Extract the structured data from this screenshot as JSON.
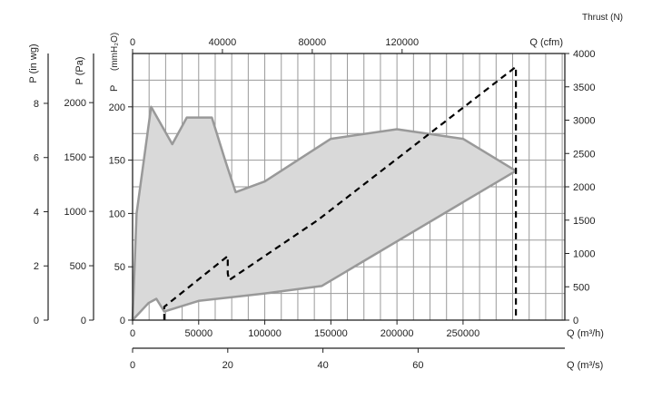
{
  "chart_data": {
    "type": "area",
    "grid": true,
    "colors": {
      "envelope_fill": "#d9d9d9",
      "envelope_stroke": "#999999",
      "thrust_line": "#000000",
      "grid": "#9a9a9a",
      "axis": "#222222"
    },
    "axes": {
      "x_bottom": {
        "label": "Q (m³/h)",
        "range": [
          0,
          327000
        ],
        "ticks": [
          0,
          50000,
          100000,
          150000,
          200000,
          250000
        ],
        "tick_labels": [
          "0",
          "50000",
          "100000",
          "150000",
          "200000",
          "250000"
        ]
      },
      "x_bottom2": {
        "label": "Q (m³/s)",
        "range": [
          0,
          90.83
        ],
        "ticks": [
          0,
          20,
          40,
          60
        ],
        "tick_labels": [
          "0",
          "20",
          "40",
          "60"
        ]
      },
      "x_top": {
        "label": "Q (cfm)",
        "range": [
          0,
          192460
        ],
        "ticks": [
          0,
          40000,
          80000,
          120000
        ],
        "tick_labels": [
          "0",
          "40000",
          "80000",
          "120000"
        ]
      },
      "y_left_mmH2O": {
        "label": "P",
        "unit_label": "(mmH₂O)",
        "range": [
          0,
          250
        ],
        "ticks": [
          0,
          50,
          100,
          150,
          200
        ],
        "tick_labels": [
          "0",
          "50",
          "100",
          "150",
          "200"
        ]
      },
      "y_left_Pa": {
        "label": "P (Pa)",
        "range": [
          0,
          2451.7
        ],
        "ticks": [
          0,
          500,
          1000,
          1500,
          2000
        ],
        "tick_labels": [
          "0",
          "500",
          "1000",
          "1500",
          "2000"
        ]
      },
      "y_left_inwg": {
        "label": "P (in wg)",
        "range": [
          0,
          9.84
        ],
        "ticks": [
          0,
          2,
          4,
          6,
          8
        ],
        "tick_labels": [
          "0",
          "2",
          "4",
          "6",
          "8"
        ]
      },
      "y_right_thrust": {
        "label": "Thrust (N)",
        "range": [
          0,
          4000
        ],
        "ticks": [
          0,
          500,
          1000,
          1500,
          2000,
          2500,
          3000,
          3500,
          4000
        ],
        "tick_labels": [
          "0",
          "500",
          "1000",
          "1500",
          "2000",
          "2500",
          "3000",
          "3500",
          "4000"
        ]
      }
    },
    "series": [
      {
        "kind": "envelope",
        "axis_x": "x_bottom",
        "axis_y": "y_left_mmH2O",
        "upper": {
          "x": [
            0,
            3000,
            14000,
            30000,
            41000,
            60000,
            70000,
            78000,
            100000,
            150000,
            200000,
            250000,
            290000
          ],
          "y": [
            0,
            100,
            200,
            165,
            190,
            190,
            150,
            120,
            130,
            170,
            179,
            170,
            140
          ]
        },
        "lower": {
          "x": [
            0,
            12000,
            18000,
            24000,
            50000,
            100000,
            143000,
            290000
          ],
          "y": [
            0,
            16,
            20,
            8,
            18,
            25,
            32,
            140
          ]
        }
      },
      {
        "kind": "line",
        "style": "dashed",
        "axis_x": "x_bottom",
        "axis_y": "y_right_thrust",
        "x": [
          24000,
          24000,
          72000,
          72000,
          73000,
          140000,
          290000,
          290000
        ],
        "y": [
          0,
          200,
          960,
          700,
          600,
          1500,
          3800,
          0
        ]
      }
    ]
  }
}
